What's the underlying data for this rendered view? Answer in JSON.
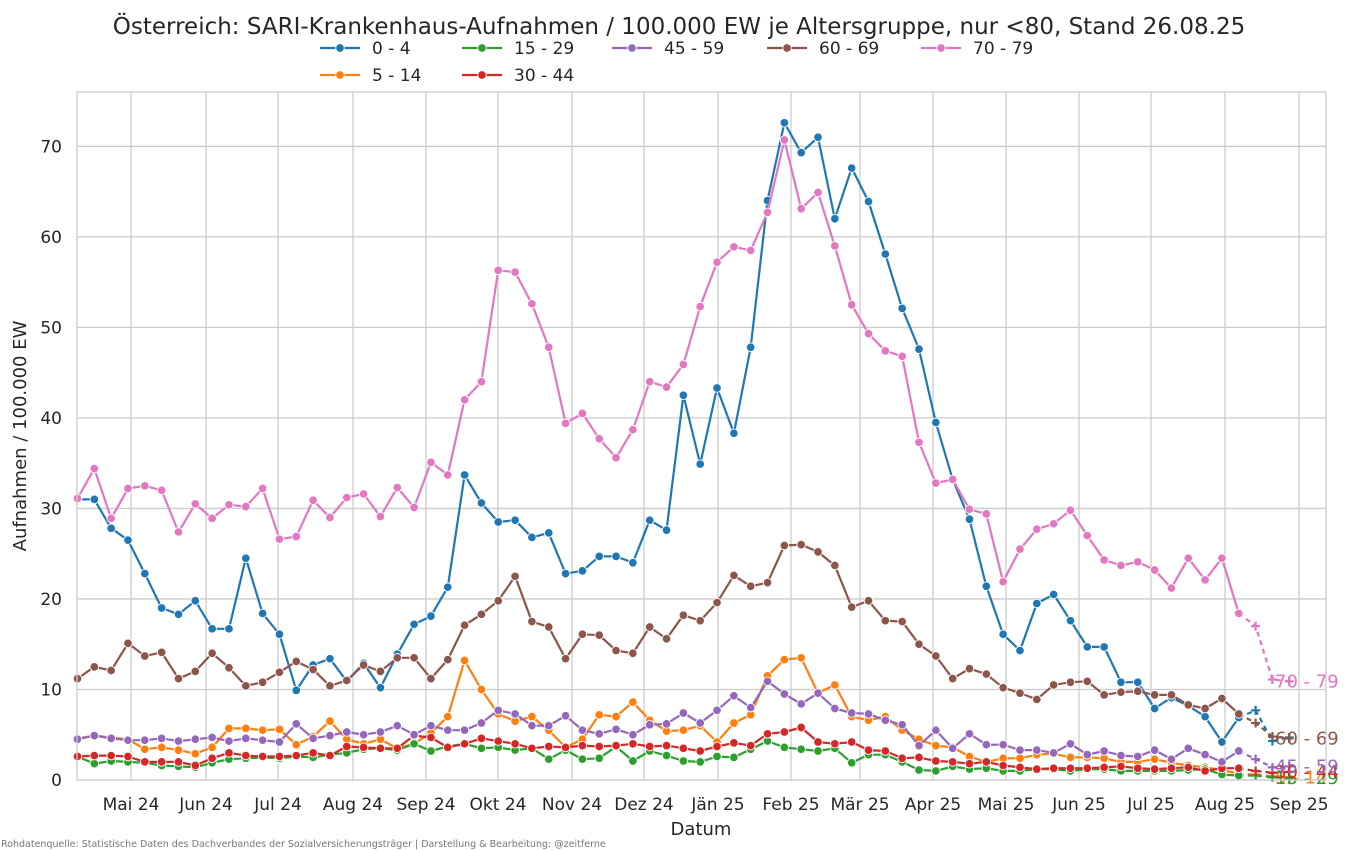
{
  "chart_data": {
    "type": "line",
    "title": "Österreich: SARI-Krankenhaus-Aufnahmen / 100.000 EW je Altersgruppe, nur <80, Stand 26.08.25",
    "xlabel": "Datum",
    "ylabel": "Aufnahmen / 100.000 EW",
    "footer": "Rohdatenquelle: Statistische Daten des Dachverbandes der Sozialversicherungsträger | Darstellung & Bearbeitung: @zeitferne",
    "ylim": [
      0,
      76
    ],
    "y_ticks": [
      0,
      10,
      20,
      30,
      40,
      50,
      60,
      70
    ],
    "x_ticks": [
      "Mai 24",
      "Jun 24",
      "Jul 24",
      "Aug 24",
      "Sep 24",
      "Okt 24",
      "Nov 24",
      "Dez 24",
      "Jän 25",
      "Feb 25",
      "Mär 25",
      "Apr 25",
      "Mai 25",
      "Jun 25",
      "Jul 25",
      "Aug 25",
      "Sep 25"
    ],
    "grid": true,
    "legend_position": "top-center, above plot",
    "x_start": "2024-04-01",
    "x_interval": "weekly",
    "provisional_points": 3,
    "series": [
      {
        "name": "0 - 4",
        "color": "#1f77b4",
        "end_label": "",
        "values": [
          31.0,
          31.0,
          27.8,
          26.5,
          22.8,
          19.0,
          18.3,
          19.8,
          16.7,
          16.7,
          24.5,
          18.4,
          16.1,
          9.9,
          12.7,
          13.4,
          10.9,
          12.9,
          10.2,
          13.9,
          17.2,
          18.1,
          21.3,
          33.7,
          30.6,
          28.5,
          28.7,
          26.8,
          27.3,
          22.8,
          23.1,
          24.7,
          24.7,
          24.0,
          28.7,
          27.6,
          42.5,
          34.9,
          43.3,
          38.3,
          47.8,
          64.0,
          72.6,
          69.3,
          71.0,
          62.0,
          67.6,
          63.9,
          58.1,
          52.1,
          47.6,
          39.5,
          33.2,
          28.8,
          21.4,
          16.1,
          14.3,
          19.5,
          20.5,
          17.6,
          14.7,
          14.7,
          10.8,
          10.8,
          7.9,
          9.1,
          8.2,
          7.0,
          4.2,
          6.9,
          7.7,
          4.3,
          4.7
        ]
      },
      {
        "name": "5 - 14",
        "color": "#ff7f0e",
        "end_label": "5 - 14",
        "values": [
          4.6,
          4.9,
          4.7,
          4.5,
          3.4,
          3.6,
          3.3,
          2.9,
          3.6,
          5.7,
          5.7,
          5.5,
          5.6,
          3.9,
          4.8,
          6.5,
          4.5,
          4.0,
          4.5,
          3.5,
          4.0,
          5.2,
          7.0,
          13.2,
          10.0,
          7.3,
          6.5,
          7.0,
          5.5,
          3.6,
          4.5,
          7.2,
          7.0,
          8.6,
          6.6,
          5.4,
          5.5,
          6.0,
          4.2,
          6.3,
          7.2,
          11.5,
          13.3,
          13.5,
          9.6,
          10.5,
          7.0,
          6.6,
          7.0,
          5.5,
          4.5,
          3.8,
          3.6,
          2.6,
          2.0,
          2.4,
          2.4,
          2.8,
          2.9,
          2.5,
          2.5,
          2.4,
          2.0,
          2.0,
          2.3,
          1.9,
          1.6,
          1.4,
          1.1,
          0.7,
          0.6,
          0.4,
          0.3
        ]
      },
      {
        "name": "15 - 29",
        "color": "#2ca02c",
        "end_label": "15 - 29",
        "values": [
          2.6,
          1.8,
          2.1,
          2.0,
          1.9,
          1.6,
          1.5,
          1.4,
          1.9,
          2.3,
          2.4,
          2.5,
          2.4,
          2.6,
          2.5,
          2.8,
          3.0,
          3.4,
          3.5,
          3.3,
          4.0,
          3.2,
          3.7,
          4.0,
          3.5,
          3.6,
          3.3,
          3.5,
          2.3,
          3.3,
          2.3,
          2.4,
          3.7,
          2.1,
          3.2,
          2.7,
          2.1,
          2.0,
          2.6,
          2.5,
          3.4,
          4.3,
          3.6,
          3.4,
          3.2,
          3.5,
          1.9,
          2.8,
          2.8,
          2.0,
          1.1,
          1.0,
          1.5,
          1.2,
          1.3,
          1.0,
          1.0,
          1.2,
          1.2,
          1.0,
          1.2,
          1.2,
          1.0,
          1.0,
          1.0,
          1.0,
          1.1,
          1.2,
          0.6,
          0.5,
          0.5,
          0.3,
          0.2
        ]
      },
      {
        "name": "30 - 44",
        "color": "#d62728",
        "end_label": "30 - 44",
        "values": [
          2.6,
          2.7,
          2.7,
          2.6,
          2.0,
          2.0,
          2.0,
          1.6,
          2.4,
          3.0,
          2.7,
          2.6,
          2.6,
          2.7,
          3.0,
          2.7,
          3.7,
          3.6,
          3.5,
          3.5,
          4.9,
          4.7,
          3.6,
          4.0,
          4.6,
          4.3,
          4.0,
          3.5,
          3.7,
          3.6,
          3.8,
          3.7,
          3.8,
          4.0,
          3.7,
          3.8,
          3.5,
          3.2,
          3.7,
          4.1,
          3.8,
          5.1,
          5.3,
          5.8,
          4.2,
          4.0,
          4.2,
          3.3,
          3.2,
          2.4,
          2.5,
          2.1,
          2.0,
          1.8,
          2.0,
          1.6,
          1.4,
          1.2,
          1.3,
          1.3,
          1.3,
          1.4,
          1.5,
          1.3,
          1.2,
          1.3,
          1.4,
          1.0,
          1.3,
          1.3,
          1.0,
          0.8,
          0.9
        ]
      },
      {
        "name": "45 - 59",
        "color": "#9467bd",
        "end_label": "45 - 59",
        "values": [
          4.5,
          4.9,
          4.6,
          4.4,
          4.4,
          4.6,
          4.3,
          4.5,
          4.7,
          4.3,
          4.6,
          4.4,
          4.2,
          6.2,
          4.6,
          4.9,
          5.3,
          5.0,
          5.3,
          6.0,
          5.0,
          6.0,
          5.5,
          5.5,
          6.3,
          7.7,
          7.3,
          6.0,
          6.0,
          7.1,
          5.5,
          5.1,
          5.6,
          5.0,
          6.1,
          6.2,
          7.4,
          6.3,
          7.7,
          9.3,
          8.0,
          10.9,
          9.5,
          8.4,
          9.6,
          7.9,
          7.4,
          7.3,
          6.6,
          6.1,
          3.8,
          5.5,
          3.5,
          5.1,
          3.9,
          3.9,
          3.3,
          3.3,
          3.0,
          4.0,
          2.8,
          3.2,
          2.7,
          2.6,
          3.3,
          2.3,
          3.5,
          2.8,
          2.0,
          3.2,
          2.3,
          1.4,
          1.5
        ]
      },
      {
        "name": "60 - 69",
        "color": "#8c564b",
        "end_label": "60 - 69",
        "values": [
          11.2,
          12.5,
          12.1,
          15.1,
          13.7,
          14.1,
          11.2,
          12.0,
          14.0,
          12.4,
          10.4,
          10.8,
          11.9,
          13.1,
          12.2,
          10.4,
          11.0,
          12.7,
          12.0,
          13.5,
          13.5,
          11.2,
          13.3,
          17.1,
          18.3,
          19.8,
          22.5,
          17.5,
          16.9,
          13.4,
          16.1,
          16.0,
          14.3,
          14.0,
          16.9,
          15.6,
          18.2,
          17.6,
          19.6,
          22.6,
          21.4,
          21.8,
          25.9,
          26.0,
          25.2,
          23.7,
          19.1,
          19.8,
          17.6,
          17.5,
          15.0,
          13.7,
          11.2,
          12.3,
          11.7,
          10.2,
          9.6,
          8.9,
          10.5,
          10.8,
          10.9,
          9.4,
          9.7,
          9.8,
          9.4,
          9.4,
          8.3,
          7.9,
          9.0,
          7.3,
          6.3,
          4.8,
          4.6
        ]
      },
      {
        "name": "70 - 79",
        "color": "#e377c2",
        "end_label": "70 - 79",
        "values": [
          31.1,
          34.4,
          28.9,
          32.2,
          32.5,
          32.0,
          27.4,
          30.5,
          28.9,
          30.4,
          30.2,
          32.2,
          26.6,
          26.9,
          30.9,
          29.0,
          31.2,
          31.6,
          29.1,
          32.3,
          30.1,
          35.1,
          33.7,
          42.0,
          44.0,
          56.3,
          56.1,
          52.6,
          47.8,
          39.4,
          40.5,
          37.7,
          35.6,
          38.7,
          44.0,
          43.4,
          45.9,
          52.3,
          57.2,
          58.9,
          58.5,
          62.7,
          70.7,
          63.1,
          64.9,
          59.0,
          52.5,
          49.3,
          47.4,
          46.8,
          37.3,
          32.8,
          33.2,
          29.9,
          29.4,
          21.9,
          25.5,
          27.7,
          28.3,
          29.8,
          27.0,
          24.3,
          23.7,
          24.1,
          23.2,
          21.2,
          24.5,
          22.1,
          24.5,
          18.4,
          17.0,
          11.1,
          10.9
        ]
      }
    ]
  }
}
